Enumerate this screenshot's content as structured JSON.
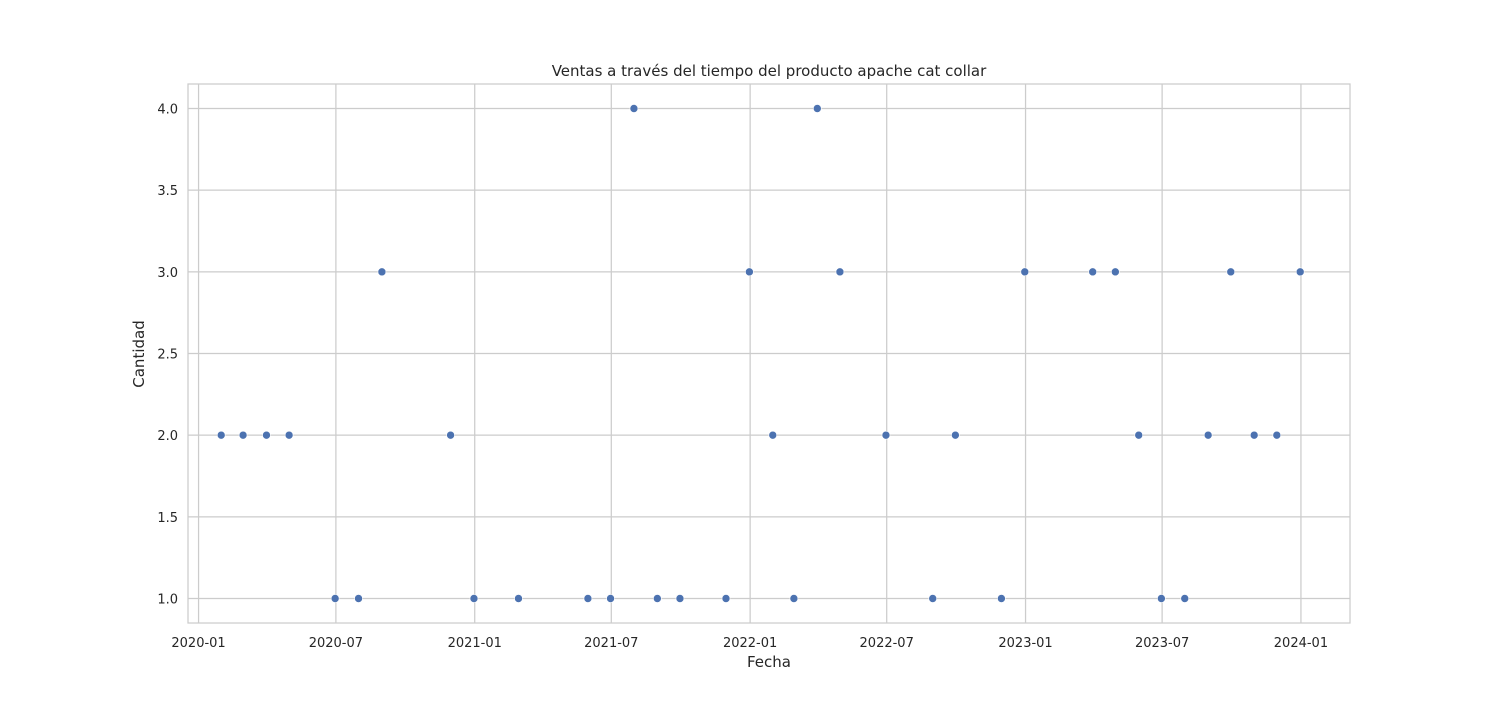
{
  "chart_data": {
    "type": "scatter",
    "title": "Ventas a través del tiempo del producto apache cat collar",
    "xlabel": "Fecha",
    "ylabel": "Cantidad",
    "x_axis_type": "date",
    "xlim": [
      "2019-12-18",
      "2024-03-06"
    ],
    "ylim": [
      0.85,
      4.15
    ],
    "x_ticks": [
      {
        "date": "2020-01-01",
        "label": "2020-01"
      },
      {
        "date": "2020-07-01",
        "label": "2020-07"
      },
      {
        "date": "2021-01-01",
        "label": "2021-01"
      },
      {
        "date": "2021-07-01",
        "label": "2021-07"
      },
      {
        "date": "2022-01-01",
        "label": "2022-01"
      },
      {
        "date": "2022-07-01",
        "label": "2022-07"
      },
      {
        "date": "2023-01-01",
        "label": "2023-01"
      },
      {
        "date": "2023-07-01",
        "label": "2023-07"
      },
      {
        "date": "2024-01-01",
        "label": "2024-01"
      }
    ],
    "y_ticks": [
      {
        "value": 1.0,
        "label": "1.0"
      },
      {
        "value": 1.5,
        "label": "1.5"
      },
      {
        "value": 2.0,
        "label": "2.0"
      },
      {
        "value": 2.5,
        "label": "2.5"
      },
      {
        "value": 3.0,
        "label": "3.0"
      },
      {
        "value": 3.5,
        "label": "3.5"
      },
      {
        "value": 4.0,
        "label": "4.0"
      }
    ],
    "grid": true,
    "legend": "none",
    "colors": {
      "marker": "#4c72b0",
      "grid": "#cccccc",
      "frame": "#cccccc",
      "text": "#262626",
      "background": "#ffffff"
    },
    "points": [
      {
        "x": "2020-01-31",
        "y": 2
      },
      {
        "x": "2020-02-29",
        "y": 2
      },
      {
        "x": "2020-03-31",
        "y": 2
      },
      {
        "x": "2020-04-30",
        "y": 2
      },
      {
        "x": "2020-06-30",
        "y": 1
      },
      {
        "x": "2020-07-31",
        "y": 1
      },
      {
        "x": "2020-08-31",
        "y": 3
      },
      {
        "x": "2020-11-30",
        "y": 2
      },
      {
        "x": "2020-12-31",
        "y": 1
      },
      {
        "x": "2021-02-28",
        "y": 1
      },
      {
        "x": "2021-05-31",
        "y": 1
      },
      {
        "x": "2021-06-30",
        "y": 1
      },
      {
        "x": "2021-07-31",
        "y": 4
      },
      {
        "x": "2021-08-31",
        "y": 1
      },
      {
        "x": "2021-09-30",
        "y": 1
      },
      {
        "x": "2021-11-30",
        "y": 1
      },
      {
        "x": "2021-12-31",
        "y": 3
      },
      {
        "x": "2022-01-31",
        "y": 2
      },
      {
        "x": "2022-02-28",
        "y": 1
      },
      {
        "x": "2022-03-31",
        "y": 4
      },
      {
        "x": "2022-04-30",
        "y": 3
      },
      {
        "x": "2022-06-30",
        "y": 2
      },
      {
        "x": "2022-08-31",
        "y": 1
      },
      {
        "x": "2022-09-30",
        "y": 2
      },
      {
        "x": "2022-11-30",
        "y": 1
      },
      {
        "x": "2022-12-31",
        "y": 3
      },
      {
        "x": "2023-03-31",
        "y": 3
      },
      {
        "x": "2023-04-30",
        "y": 3
      },
      {
        "x": "2023-05-31",
        "y": 2
      },
      {
        "x": "2023-06-30",
        "y": 1
      },
      {
        "x": "2023-07-31",
        "y": 1
      },
      {
        "x": "2023-08-31",
        "y": 2
      },
      {
        "x": "2023-09-30",
        "y": 3
      },
      {
        "x": "2023-10-31",
        "y": 2
      },
      {
        "x": "2023-11-30",
        "y": 2
      },
      {
        "x": "2023-12-31",
        "y": 3
      }
    ]
  }
}
